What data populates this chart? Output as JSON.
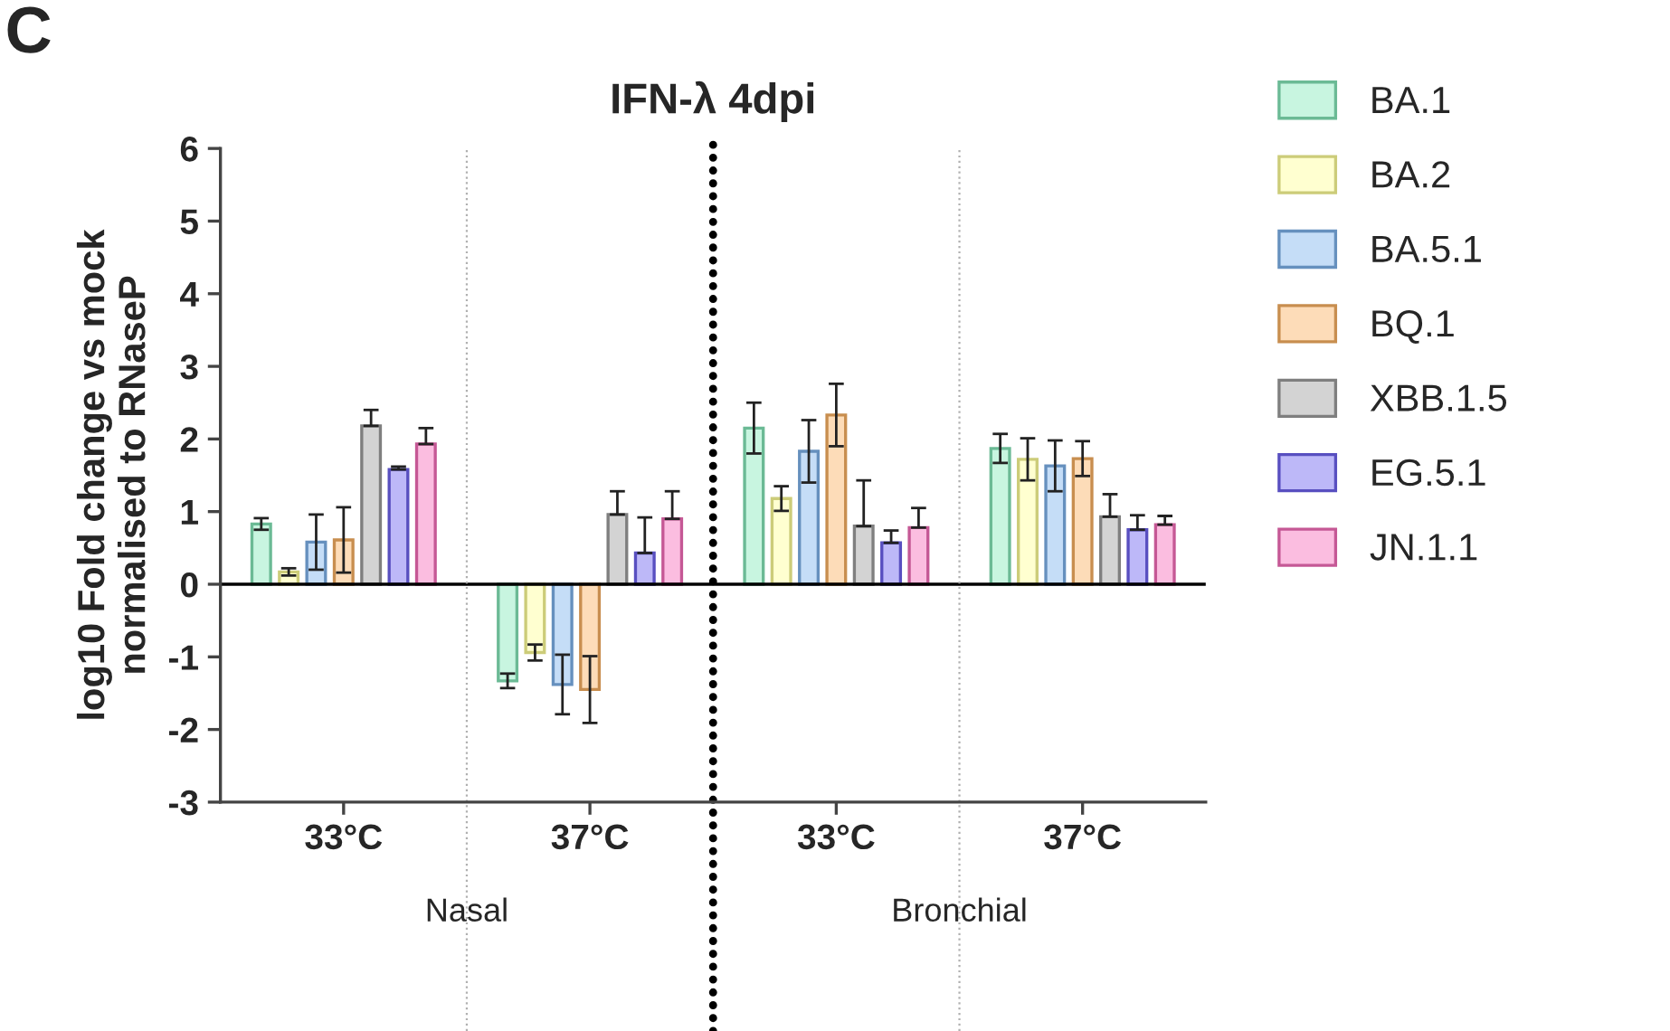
{
  "chart_data": {
    "type": "bar",
    "title": "IFN-λ 4dpi",
    "ylabel": "log10 Fold change vs mock\nnormalised to RNaseP",
    "categories": [
      "33°C",
      "37°C",
      "33°C",
      "37°C"
    ],
    "annotations": [
      "C",
      "Nasal",
      "Bronchial"
    ],
    "ylim": [
      -3,
      6
    ],
    "yticks": [
      -3,
      -2,
      -1,
      0,
      1,
      2,
      3,
      4,
      5,
      6
    ],
    "grid": false,
    "legend": "right",
    "series": [
      {
        "name": "BA.1",
        "color": "#c8f5e0",
        "values": [
          0.83,
          -1.33,
          2.15,
          1.87
        ],
        "errors": [
          0.08,
          0.1,
          0.35,
          0.2
        ]
      },
      {
        "name": "BA.2",
        "color": "#ffffd0",
        "values": [
          0.17,
          -0.94,
          1.18,
          1.72
        ],
        "errors": [
          0.05,
          0.11,
          0.17,
          0.29
        ]
      },
      {
        "name": "BA.5.1",
        "color": "#c5ddf7",
        "values": [
          0.58,
          -1.38,
          1.83,
          1.63
        ],
        "errors": [
          0.38,
          0.41,
          0.43,
          0.35
        ]
      },
      {
        "name": "BQ.1",
        "color": "#fddcb8",
        "values": [
          0.61,
          -1.45,
          2.33,
          1.73
        ],
        "errors": [
          0.45,
          0.46,
          0.43,
          0.24
        ]
      },
      {
        "name": "XBB.1.5",
        "color": "#d3d3d3",
        "values": [
          2.18,
          0.96,
          0.8,
          0.93
        ],
        "errors": [
          [
            2.18,
            2.4
          ],
          [
            0.96,
            1.28
          ],
          [
            0.8,
            1.43
          ],
          [
            0.93,
            1.24
          ]
        ]
      },
      {
        "name": "EG.5.1",
        "color": "#bdb8f8",
        "values": [
          1.58,
          0.43,
          0.57,
          0.75
        ],
        "errors": [
          [
            1.58,
            1.62
          ],
          [
            0.43,
            0.92
          ],
          [
            0.57,
            0.74
          ],
          [
            0.75,
            0.95
          ]
        ]
      },
      {
        "name": "JN.1.1",
        "color": "#fbbde0",
        "values": [
          1.93,
          0.9,
          0.78,
          0.82
        ],
        "errors": [
          [
            1.93,
            2.15
          ],
          [
            0.9,
            1.28
          ],
          [
            0.78,
            1.05
          ],
          [
            0.82,
            0.94
          ]
        ]
      }
    ]
  }
}
